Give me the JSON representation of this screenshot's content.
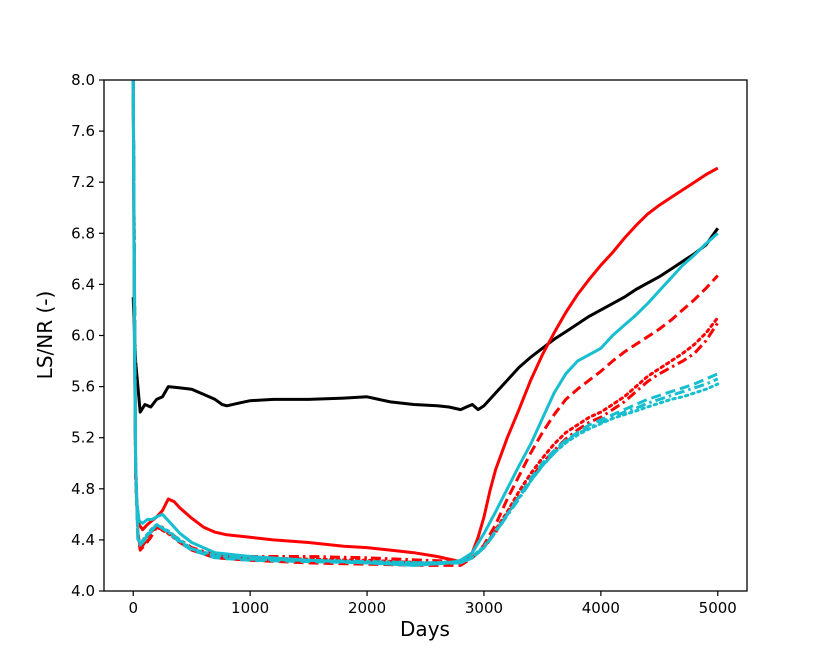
{
  "chart_data": {
    "type": "line",
    "title": "",
    "xlabel": "Days",
    "ylabel": "LS/NR  (-)",
    "xlim": [
      -250,
      5250
    ],
    "ylim": [
      4.0,
      8.0
    ],
    "xticks": [
      0,
      1000,
      2000,
      3000,
      4000,
      5000
    ],
    "yticks": [
      4.0,
      4.4,
      4.8,
      5.2,
      5.6,
      6.0,
      6.4,
      6.8,
      7.2,
      7.6,
      8.0
    ],
    "xtick_labels": [
      "0",
      "1000",
      "2000",
      "3000",
      "4000",
      "5000"
    ],
    "ytick_labels": [
      "4.0",
      "4.4",
      "4.8",
      "5.2",
      "5.6",
      "6.0",
      "6.4",
      "6.8",
      "7.2",
      "7.6",
      "8.0"
    ],
    "grid": false,
    "legend": "none",
    "series": [
      {
        "name": "black solid",
        "color": "#000000",
        "style": "solid",
        "x": [
          0,
          20,
          40,
          60,
          80,
          100,
          150,
          200,
          250,
          300,
          400,
          500,
          600,
          700,
          760,
          800,
          900,
          1000,
          1200,
          1500,
          1800,
          2000,
          2100,
          2200,
          2400,
          2600,
          2700,
          2800,
          2850,
          2900,
          2950,
          3000,
          3100,
          3200,
          3300,
          3400,
          3500,
          3600,
          3700,
          3800,
          3900,
          4000,
          4100,
          4200,
          4300,
          4400,
          4500,
          4600,
          4700,
          4800,
          4900,
          5000
        ],
        "y": [
          6.3,
          5.8,
          5.6,
          5.4,
          5.43,
          5.46,
          5.44,
          5.5,
          5.52,
          5.6,
          5.59,
          5.58,
          5.54,
          5.5,
          5.46,
          5.45,
          5.47,
          5.49,
          5.5,
          5.5,
          5.51,
          5.52,
          5.5,
          5.48,
          5.46,
          5.45,
          5.44,
          5.42,
          5.44,
          5.46,
          5.42,
          5.45,
          5.55,
          5.65,
          5.75,
          5.83,
          5.9,
          5.97,
          6.03,
          6.09,
          6.15,
          6.2,
          6.25,
          6.3,
          6.36,
          6.41,
          6.46,
          6.52,
          6.58,
          6.64,
          6.71,
          6.84
        ]
      },
      {
        "name": "red solid",
        "color": "#ff0000",
        "style": "solid",
        "x": [
          0,
          10,
          20,
          30,
          50,
          80,
          120,
          160,
          200,
          250,
          300,
          350,
          400,
          500,
          600,
          700,
          800,
          1000,
          1200,
          1500,
          1800,
          2000,
          2200,
          2400,
          2600,
          2700,
          2750,
          2800,
          2850,
          2900,
          2950,
          3000,
          3050,
          3100,
          3200,
          3300,
          3400,
          3500,
          3600,
          3700,
          3800,
          3900,
          4000,
          4100,
          4200,
          4300,
          4400,
          4500,
          4600,
          4700,
          4800,
          4900,
          5000
        ],
        "y": [
          8.0,
          6.0,
          5.0,
          4.7,
          4.52,
          4.48,
          4.52,
          4.55,
          4.58,
          4.63,
          4.72,
          4.7,
          4.65,
          4.57,
          4.5,
          4.46,
          4.44,
          4.42,
          4.4,
          4.38,
          4.35,
          4.34,
          4.32,
          4.3,
          4.27,
          4.25,
          4.24,
          4.23,
          4.25,
          4.3,
          4.42,
          4.58,
          4.78,
          4.95,
          5.2,
          5.42,
          5.65,
          5.85,
          6.02,
          6.18,
          6.32,
          6.44,
          6.55,
          6.65,
          6.76,
          6.86,
          6.95,
          7.02,
          7.08,
          7.14,
          7.2,
          7.26,
          7.31
        ]
      },
      {
        "name": "red dashed",
        "color": "#ff0000",
        "style": "dashed",
        "x": [
          0,
          20,
          40,
          60,
          100,
          150,
          200,
          250,
          300,
          400,
          500,
          700,
          1000,
          1500,
          2000,
          2500,
          2800,
          2900,
          3000,
          3100,
          3200,
          3300,
          3400,
          3500,
          3600,
          3700,
          3800,
          3900,
          4000,
          4100,
          4200,
          4300,
          4400,
          4500,
          4600,
          4700,
          4800,
          4900,
          5000
        ],
        "y": [
          8.0,
          5.0,
          4.45,
          4.32,
          4.36,
          4.42,
          4.5,
          4.5,
          4.46,
          4.38,
          4.32,
          4.26,
          4.24,
          4.22,
          4.21,
          4.2,
          4.2,
          4.26,
          4.36,
          4.52,
          4.72,
          4.9,
          5.08,
          5.24,
          5.38,
          5.5,
          5.58,
          5.65,
          5.72,
          5.8,
          5.87,
          5.93,
          5.99,
          6.05,
          6.12,
          6.2,
          6.28,
          6.37,
          6.47
        ]
      },
      {
        "name": "red dotted",
        "color": "#ff0000",
        "style": "dotted",
        "x": [
          0,
          20,
          40,
          60,
          100,
          150,
          200,
          300,
          400,
          500,
          700,
          1000,
          1500,
          2000,
          2500,
          2800,
          2900,
          3000,
          3100,
          3200,
          3300,
          3400,
          3500,
          3600,
          3700,
          3800,
          3900,
          4000,
          4100,
          4200,
          4300,
          4400,
          4500,
          4600,
          4700,
          4800,
          4900,
          5000
        ],
        "y": [
          8.0,
          4.9,
          4.45,
          4.34,
          4.4,
          4.46,
          4.5,
          4.45,
          4.38,
          4.32,
          4.27,
          4.26,
          4.25,
          4.24,
          4.22,
          4.22,
          4.26,
          4.34,
          4.48,
          4.62,
          4.78,
          4.92,
          5.04,
          5.15,
          5.24,
          5.3,
          5.36,
          5.4,
          5.46,
          5.52,
          5.6,
          5.68,
          5.74,
          5.8,
          5.86,
          5.93,
          6.02,
          6.14
        ]
      },
      {
        "name": "red dash-dot",
        "color": "#ff0000",
        "style": "dashdot",
        "x": [
          0,
          20,
          40,
          60,
          100,
          150,
          200,
          300,
          400,
          500,
          700,
          1000,
          1500,
          2000,
          2500,
          2800,
          2900,
          3000,
          3100,
          3200,
          3300,
          3400,
          3500,
          3600,
          3700,
          3800,
          3900,
          4000,
          4100,
          4200,
          4300,
          4400,
          4500,
          4600,
          4700,
          4800,
          4900,
          5000
        ],
        "y": [
          8.0,
          4.9,
          4.45,
          4.33,
          4.38,
          4.45,
          4.5,
          4.46,
          4.4,
          4.34,
          4.28,
          4.27,
          4.27,
          4.26,
          4.24,
          4.23,
          4.26,
          4.34,
          4.46,
          4.6,
          4.74,
          4.88,
          5.0,
          5.1,
          5.19,
          5.26,
          5.32,
          5.36,
          5.42,
          5.48,
          5.56,
          5.64,
          5.7,
          5.75,
          5.8,
          5.86,
          5.96,
          6.1
        ]
      },
      {
        "name": "cyan solid",
        "color": "#17becf",
        "style": "solid",
        "x": [
          0,
          10,
          20,
          30,
          50,
          80,
          120,
          160,
          200,
          250,
          300,
          400,
          500,
          700,
          1000,
          1500,
          2000,
          2400,
          2700,
          2800,
          2900,
          3000,
          3100,
          3200,
          3300,
          3400,
          3500,
          3600,
          3700,
          3800,
          3900,
          4000,
          4100,
          4200,
          4300,
          4400,
          4500,
          4600,
          4700,
          4800,
          4900,
          5000
        ],
        "y": [
          8.0,
          6.0,
          5.0,
          4.7,
          4.55,
          4.53,
          4.56,
          4.56,
          4.58,
          4.6,
          4.55,
          4.45,
          4.38,
          4.3,
          4.27,
          4.24,
          4.22,
          4.2,
          4.22,
          4.24,
          4.3,
          4.45,
          4.62,
          4.8,
          4.98,
          5.15,
          5.35,
          5.55,
          5.7,
          5.8,
          5.85,
          5.9,
          6.0,
          6.08,
          6.16,
          6.25,
          6.35,
          6.45,
          6.55,
          6.63,
          6.72,
          6.8
        ]
      },
      {
        "name": "cyan dashed",
        "color": "#17becf",
        "style": "dashed",
        "x": [
          0,
          20,
          40,
          60,
          100,
          150,
          200,
          300,
          400,
          500,
          700,
          1000,
          1500,
          2000,
          2500,
          2800,
          2900,
          3000,
          3100,
          3200,
          3300,
          3400,
          3500,
          3600,
          3700,
          3800,
          3900,
          4000,
          4100,
          4200,
          4300,
          4400,
          4500,
          4600,
          4700,
          4800,
          4900,
          5000
        ],
        "y": [
          8.0,
          5.0,
          4.4,
          4.36,
          4.4,
          4.46,
          4.52,
          4.46,
          4.38,
          4.32,
          4.26,
          4.24,
          4.23,
          4.22,
          4.21,
          4.22,
          4.26,
          4.34,
          4.46,
          4.6,
          4.74,
          4.88,
          5.0,
          5.1,
          5.18,
          5.24,
          5.3,
          5.34,
          5.38,
          5.42,
          5.46,
          5.5,
          5.53,
          5.56,
          5.59,
          5.62,
          5.66,
          5.7
        ]
      },
      {
        "name": "cyan dotted",
        "color": "#17becf",
        "style": "dotted",
        "x": [
          0,
          20,
          40,
          60,
          100,
          150,
          200,
          300,
          400,
          500,
          700,
          1000,
          1500,
          2000,
          2500,
          2800,
          2900,
          3000,
          3100,
          3200,
          3300,
          3400,
          3500,
          3600,
          3700,
          3800,
          3900,
          4000,
          4100,
          4200,
          4300,
          4400,
          4500,
          4600,
          4700,
          4800,
          4900,
          5000
        ],
        "y": [
          8.0,
          5.0,
          4.42,
          4.37,
          4.42,
          4.48,
          4.52,
          4.47,
          4.4,
          4.33,
          4.28,
          4.25,
          4.24,
          4.23,
          4.22,
          4.23,
          4.27,
          4.35,
          4.47,
          4.6,
          4.73,
          4.86,
          4.98,
          5.08,
          5.16,
          5.22,
          5.27,
          5.31,
          5.35,
          5.38,
          5.41,
          5.44,
          5.47,
          5.5,
          5.52,
          5.55,
          5.58,
          5.62
        ]
      },
      {
        "name": "cyan dash-dot",
        "color": "#17becf",
        "style": "dashdot",
        "x": [
          0,
          20,
          40,
          60,
          100,
          150,
          200,
          300,
          400,
          500,
          700,
          1000,
          1500,
          2000,
          2500,
          2800,
          2900,
          3000,
          3100,
          3200,
          3300,
          3400,
          3500,
          3600,
          3700,
          3800,
          3900,
          4000,
          4100,
          4200,
          4300,
          4400,
          4500,
          4600,
          4700,
          4800,
          4900,
          5000
        ],
        "y": [
          8.0,
          5.0,
          4.41,
          4.36,
          4.41,
          4.47,
          4.52,
          4.46,
          4.39,
          4.33,
          4.27,
          4.25,
          4.24,
          4.23,
          4.22,
          4.22,
          4.26,
          4.34,
          4.46,
          4.59,
          4.72,
          4.86,
          4.98,
          5.08,
          5.17,
          5.23,
          5.28,
          5.32,
          5.36,
          5.4,
          5.43,
          5.47,
          5.5,
          5.53,
          5.56,
          5.59,
          5.62,
          5.66
        ]
      }
    ]
  }
}
